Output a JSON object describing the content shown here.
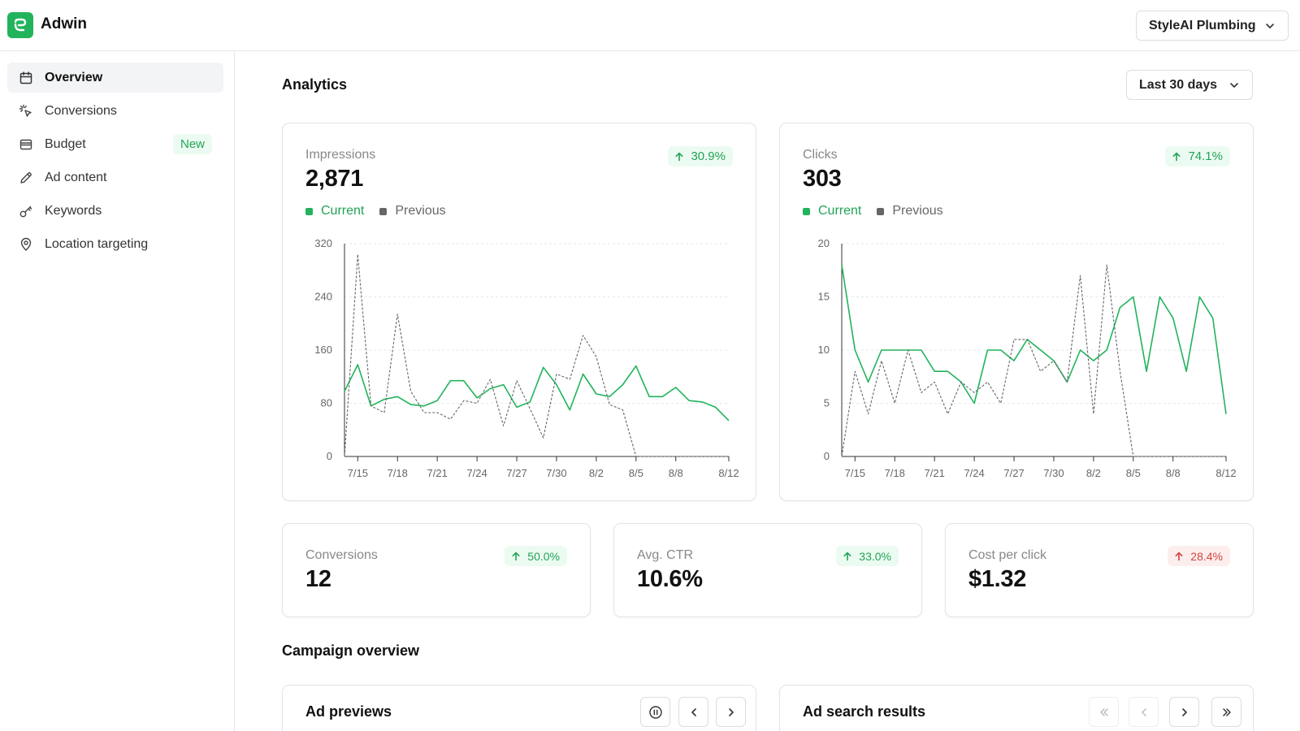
{
  "app": {
    "name": "Adwin",
    "logo_icon": "logo-icon",
    "accent": "#22b35c"
  },
  "org_select": {
    "value": "StyleAI Plumbing"
  },
  "sidebar": {
    "items": [
      {
        "label": "Overview",
        "icon": "calendar-icon",
        "active": true
      },
      {
        "label": "Conversions",
        "icon": "cursor-click-icon"
      },
      {
        "label": "Budget",
        "icon": "wallet-icon",
        "badge": "New"
      },
      {
        "label": "Ad content",
        "icon": "pencil-icon"
      },
      {
        "label": "Keywords",
        "icon": "key-icon"
      },
      {
        "label": "Location targeting",
        "icon": "map-pin-icon"
      }
    ]
  },
  "analytics": {
    "title": "Analytics",
    "range": "Last 30 days"
  },
  "cards": {
    "impressions": {
      "label": "Impressions",
      "value": "2,871",
      "delta": "30.9%",
      "trend": "up",
      "status_color": "#22a357"
    },
    "clicks": {
      "label": "Clicks",
      "value": "303",
      "delta": "74.1%",
      "trend": "up",
      "status_color": "#22a357"
    },
    "conversions": {
      "label": "Conversions",
      "value": "12",
      "delta": "50.0%",
      "trend": "up",
      "status_color": "#22a357"
    },
    "ctr": {
      "label": "Avg. CTR",
      "value": "10.6%",
      "delta": "33.0%",
      "trend": "up",
      "status_color": "#22a357"
    },
    "cpc": {
      "label": "Cost per click",
      "value": "$1.32",
      "delta": "28.4%",
      "trend": "up",
      "status_color": "#d2453d"
    }
  },
  "legend": {
    "current": "Current",
    "previous": "Previous",
    "current_color": "#22b35c",
    "previous_color": "#666666"
  },
  "chart_data": [
    {
      "type": "line",
      "x": [
        "7/14",
        "7/15",
        "7/16",
        "7/17",
        "7/18",
        "7/19",
        "7/20",
        "7/21",
        "7/22",
        "7/23",
        "7/24",
        "7/25",
        "7/26",
        "7/27",
        "7/28",
        "7/29",
        "7/30",
        "7/31",
        "8/1",
        "8/2",
        "8/3",
        "8/4",
        "8/5",
        "8/6",
        "8/7",
        "8/8",
        "8/9",
        "8/10",
        "8/11",
        "8/12"
      ],
      "tick_labels": [
        "7/15",
        "7/18",
        "7/21",
        "7/24",
        "7/27",
        "7/30",
        "8/2",
        "8/5",
        "8/8",
        "8/12"
      ],
      "yticks": [
        0,
        80,
        160,
        240,
        320
      ],
      "ylim": [
        0,
        320
      ],
      "series": [
        {
          "name": "Current",
          "values": [
            98,
            138,
            76,
            86,
            90,
            78,
            76,
            84,
            114,
            114,
            88,
            102,
            108,
            74,
            82,
            134,
            108,
            70,
            124,
            94,
            90,
            108,
            136,
            90,
            90,
            104,
            84,
            82,
            74,
            54
          ]
        },
        {
          "name": "Previous",
          "values": [
            0,
            304,
            76,
            66,
            214,
            98,
            66,
            66,
            56,
            84,
            80,
            116,
            46,
            114,
            72,
            28,
            124,
            116,
            182,
            150,
            78,
            70,
            0,
            0,
            0,
            0,
            0,
            0,
            0,
            0
          ]
        }
      ]
    },
    {
      "type": "line",
      "x": [
        "7/14",
        "7/15",
        "7/16",
        "7/17",
        "7/18",
        "7/19",
        "7/20",
        "7/21",
        "7/22",
        "7/23",
        "7/24",
        "7/25",
        "7/26",
        "7/27",
        "7/28",
        "7/29",
        "7/30",
        "7/31",
        "8/1",
        "8/2",
        "8/3",
        "8/4",
        "8/5",
        "8/6",
        "8/7",
        "8/8",
        "8/9",
        "8/10",
        "8/11",
        "8/12"
      ],
      "tick_labels": [
        "7/15",
        "7/18",
        "7/21",
        "7/24",
        "7/27",
        "7/30",
        "8/2",
        "8/5",
        "8/8",
        "8/12"
      ],
      "yticks": [
        0,
        5,
        10,
        15,
        20
      ],
      "ylim": [
        0,
        20
      ],
      "series": [
        {
          "name": "Current",
          "values": [
            18,
            10,
            7,
            10,
            10,
            10,
            10,
            8,
            8,
            7,
            5,
            10,
            10,
            9,
            11,
            10,
            9,
            7,
            10,
            9,
            10,
            14,
            15,
            8,
            15,
            13,
            8,
            15,
            13,
            4
          ]
        },
        {
          "name": "Previous",
          "values": [
            0,
            8,
            4,
            9,
            5,
            10,
            6,
            7,
            4,
            7,
            6,
            7,
            5,
            11,
            11,
            8,
            9,
            7,
            17,
            4,
            18,
            8,
            0,
            0,
            0,
            0,
            0,
            0,
            0,
            0
          ]
        }
      ]
    }
  ],
  "campaign": {
    "title": "Campaign overview",
    "ad_previews": {
      "title": "Ad previews"
    },
    "ad_search_results": {
      "title": "Ad search results"
    }
  }
}
